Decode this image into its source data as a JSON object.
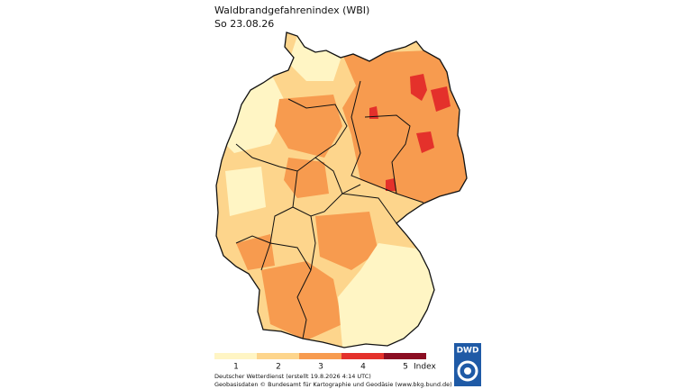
{
  "header": {
    "title": "Waldbrandgefahrenindex (WBI)",
    "date": "So 23.08.26"
  },
  "legend": {
    "classes": [
      {
        "label": "1",
        "color": "#fff5c4"
      },
      {
        "label": "2",
        "color": "#fdd58c"
      },
      {
        "label": "3",
        "color": "#f79b4f"
      },
      {
        "label": "4",
        "color": "#e4312b"
      },
      {
        "label": "5",
        "color": "#8b0d22"
      }
    ],
    "unit": "Index"
  },
  "footer": {
    "line1": "Deutscher Wetterdienst (erstellt 19.8.2026 4:14 UTC)",
    "line2": "Geobasisdaten © Bundesamt für Kartographie und Geodäsie (www.bkg.bund.de)"
  },
  "logo": "DWD"
}
